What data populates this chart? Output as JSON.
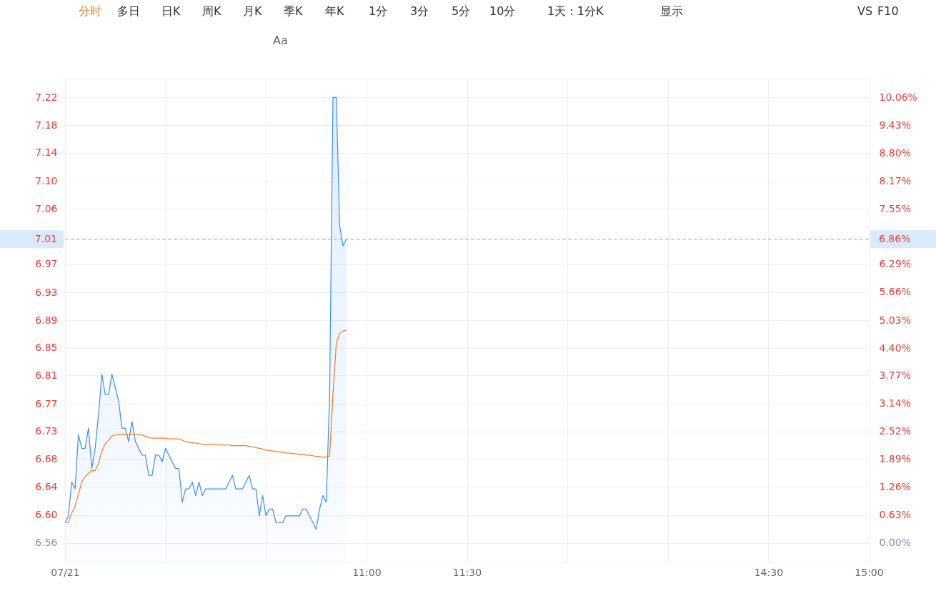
{
  "chart_data": {
    "type": "line",
    "annotations": [
      "分时",
      "多日",
      "日K",
      "周K",
      "月K",
      "季K",
      "年K",
      "1分",
      "3分",
      "5分",
      "10分",
      "1天 : 1分K",
      "显示",
      "VS",
      "F10",
      "Aa",
      "6.86%"
    ],
    "categories": [
      "07/21",
      null,
      null,
      null,
      null,
      null,
      null,
      null,
      null,
      null,
      null,
      null,
      null,
      null,
      null,
      null,
      null,
      null,
      null,
      null,
      null,
      null,
      null,
      null,
      null,
      null,
      null,
      null,
      null,
      null,
      null,
      null,
      null,
      null,
      null,
      null,
      null,
      null,
      null,
      null,
      null,
      null,
      null,
      null,
      null,
      null,
      null,
      null,
      null,
      null,
      null,
      null,
      null,
      null,
      null,
      null,
      null,
      null,
      null,
      null,
      null,
      null,
      null,
      null,
      null,
      null,
      null,
      null,
      null,
      null,
      null,
      null,
      null,
      null,
      null,
      null,
      null,
      null,
      null,
      null,
      null,
      null,
      null,
      null,
      null,
      null,
      null,
      null,
      null,
      null,
      "11:00",
      null,
      null,
      null,
      null,
      null,
      null,
      null,
      null,
      null,
      null,
      null,
      null,
      null,
      null,
      null,
      null,
      null,
      null,
      null,
      null,
      null,
      null,
      null,
      null,
      null,
      null,
      null,
      null,
      null,
      "11:30",
      null,
      null,
      null,
      null,
      null,
      null,
      null,
      null,
      null,
      null,
      null,
      null,
      null,
      null,
      null,
      null,
      null,
      null,
      null,
      null,
      null,
      null,
      null,
      null,
      null,
      null,
      null,
      null,
      null,
      null,
      null,
      null,
      null,
      null,
      null,
      null,
      null,
      null,
      null,
      null,
      null,
      null,
      null,
      null,
      null,
      null,
      null,
      null,
      null,
      null,
      null,
      null,
      null,
      null,
      null,
      null,
      null,
      null,
      null,
      null,
      null,
      null,
      null,
      null,
      null,
      null,
      null,
      null,
      null,
      null,
      null,
      null,
      null,
      null,
      null,
      null,
      null,
      null,
      null,
      null,
      null,
      null,
      null,
      null,
      null,
      null,
      null,
      null,
      null,
      "14:30",
      null,
      null,
      null,
      null,
      null,
      null,
      null,
      null,
      null,
      null,
      null,
      null,
      null,
      null,
      null,
      null,
      null,
      null,
      null,
      null,
      null,
      null,
      null,
      null,
      null,
      null,
      null,
      null,
      null,
      "15:00"
    ],
    "series": [
      {
        "type": "area",
        "color": "#3a8ef6",
        "values": [
          6.59,
          6.6,
          6.65,
          6.64,
          6.72,
          6.7,
          6.7,
          6.73,
          6.67,
          6.7,
          6.75,
          6.81,
          6.78,
          6.78,
          6.81,
          6.79,
          6.77,
          6.73,
          6.73,
          6.71,
          6.74,
          6.71,
          6.7,
          6.69,
          6.69,
          6.66,
          6.66,
          6.69,
          6.69,
          6.68,
          6.7,
          6.69,
          6.68,
          6.67,
          6.67,
          6.62,
          6.64,
          6.64,
          6.65,
          6.63,
          6.65,
          6.63,
          6.64,
          6.64,
          6.64,
          6.64,
          6.64,
          6.64,
          6.64,
          6.65,
          6.66,
          6.64,
          6.64,
          6.64,
          6.65,
          6.66,
          6.64,
          6.64,
          6.6,
          6.63,
          6.6,
          6.61,
          6.61,
          6.59,
          6.59,
          6.59,
          6.6,
          6.6,
          6.6,
          6.6,
          6.6,
          6.61,
          6.61,
          6.6,
          6.59,
          6.58,
          6.61,
          6.63,
          6.62,
          6.78,
          7.22,
          7.22,
          7.03,
          7.0,
          7.01,
          null,
          null,
          null,
          null,
          null,
          null,
          null,
          null,
          null,
          null,
          null,
          null,
          null,
          null,
          null,
          null,
          null,
          null,
          null,
          null,
          null,
          null,
          null,
          null,
          null,
          null,
          null,
          null,
          null,
          null,
          null,
          null,
          null,
          null,
          null,
          null,
          null,
          null,
          null,
          null,
          null,
          null,
          null,
          null,
          null,
          null,
          null,
          null,
          null,
          null,
          null,
          null,
          null,
          null,
          null,
          null,
          null,
          null,
          null,
          null,
          null,
          null,
          null,
          null,
          null,
          null,
          null,
          null,
          null,
          null,
          null,
          null,
          null,
          null,
          null,
          null,
          null,
          null,
          null,
          null,
          null,
          null,
          null,
          null,
          null,
          null,
          null,
          null,
          null,
          null,
          null,
          null,
          null,
          null,
          null,
          null,
          null,
          null,
          null,
          null,
          null,
          null,
          null,
          null,
          null,
          null,
          null,
          null,
          null,
          null,
          null,
          null,
          null,
          null,
          null,
          null,
          null,
          null,
          null,
          null,
          null,
          null,
          null,
          null,
          null,
          null,
          null,
          null,
          null,
          null,
          null,
          null,
          null,
          null,
          null,
          null,
          null,
          null,
          null,
          null,
          null,
          null,
          null,
          null,
          null,
          null,
          null,
          null,
          null,
          null,
          null,
          null,
          null,
          null,
          null,
          null
        ]
      },
      {
        "color": "#f47b20",
        "values": [
          6.59,
          6.59,
          6.604,
          6.614,
          6.632,
          6.65,
          6.658,
          6.663,
          6.667,
          6.667,
          6.678,
          6.696,
          6.707,
          6.712,
          6.718,
          6.72,
          6.721,
          6.721,
          6.721,
          6.721,
          6.721,
          6.721,
          6.721,
          6.72,
          6.718,
          6.716,
          6.715,
          6.715,
          6.715,
          6.715,
          6.715,
          6.714,
          6.714,
          6.714,
          6.714,
          6.712,
          6.71,
          6.709,
          6.708,
          6.708,
          6.707,
          6.706,
          6.706,
          6.706,
          6.706,
          6.706,
          6.705,
          6.705,
          6.705,
          6.705,
          6.704,
          6.704,
          6.704,
          6.704,
          6.704,
          6.703,
          6.702,
          6.701,
          6.7,
          6.699,
          6.697,
          6.697,
          6.696,
          6.695,
          6.695,
          6.694,
          6.693,
          6.693,
          6.692,
          6.692,
          6.691,
          6.691,
          6.69,
          6.69,
          6.689,
          6.688,
          6.688,
          6.687,
          6.687,
          6.688,
          6.78,
          6.856,
          6.87,
          6.874,
          6.875,
          null,
          null,
          null,
          null,
          null,
          null,
          null,
          null,
          null,
          null,
          null,
          null,
          null,
          null,
          null,
          null,
          null,
          null,
          null,
          null,
          null,
          null,
          null,
          null,
          null,
          null,
          null,
          null,
          null,
          null,
          null,
          null,
          null,
          null,
          null,
          null,
          null,
          null,
          null,
          null,
          null,
          null,
          null,
          null,
          null,
          null,
          null,
          null,
          null,
          null,
          null,
          null,
          null,
          null,
          null,
          null,
          null,
          null,
          null,
          null,
          null,
          null,
          null,
          null,
          null,
          null,
          null,
          null,
          null,
          null,
          null,
          null,
          null,
          null,
          null,
          null,
          null,
          null,
          null,
          null,
          null,
          null,
          null,
          null,
          null,
          null,
          null,
          null,
          null,
          null,
          null,
          null,
          null,
          null,
          null,
          null,
          null,
          null,
          null,
          null,
          null,
          null,
          null,
          null,
          null,
          null,
          null,
          null,
          null,
          null,
          null,
          null,
          null,
          null,
          null,
          null,
          null,
          null,
          null,
          null,
          null,
          null,
          null,
          null,
          null,
          null,
          null,
          null,
          null,
          null,
          null,
          null,
          null,
          null,
          null,
          null,
          null,
          null,
          null,
          null,
          null,
          null,
          null,
          null,
          null,
          null,
          null,
          null,
          null,
          null,
          null,
          null,
          null,
          null,
          null,
          null
        ]
      }
    ],
    "ylim": [
      6.532,
      7.248
    ],
    "yticks": [
      6.56,
      {
        "value": 6.601,
        "label": "6.60"
      },
      {
        "value": 6.643,
        "label": "6.64"
      },
      {
        "value": 6.684,
        "label": "6.68"
      },
      {
        "value": 6.725,
        "label": "6.73"
      },
      {
        "value": 6.766,
        "label": "6.77"
      },
      {
        "value": 6.808,
        "label": "6.81"
      },
      {
        "value": 6.849,
        "label": "6.85"
      },
      6.89,
      {
        "value": 6.931,
        "label": "6.93"
      },
      {
        "value": 6.973,
        "label": "6.97"
      },
      {
        "value": 7.014,
        "label": null
      },
      {
        "value": 7.055,
        "label": "7.06"
      },
      {
        "value": 7.096,
        "label": "7.10"
      },
      {
        "value": 7.138,
        "label": "7.14"
      },
      {
        "value": 7.179,
        "label": "7.18"
      },
      7.22
    ],
    "y2lim": [
      -0.42,
      10.48
    ],
    "y2ticks": [
      {
        "value": 0,
        "label": "0.00%"
      },
      {
        "value": 0.629,
        "label": "0.63%"
      },
      {
        "value": 1.258,
        "label": "1.26%"
      },
      {
        "value": 1.886,
        "label": "1.89%"
      },
      {
        "value": 2.515,
        "label": "2.52%"
      },
      {
        "value": 3.144,
        "label": "3.14%"
      },
      {
        "value": 3.773,
        "label": "3.77%"
      },
      {
        "value": 4.401,
        "label": "4.40%"
      },
      {
        "value": 5.03,
        "label": "5.03%"
      },
      {
        "value": 5.659,
        "label": "5.66%"
      },
      {
        "value": 6.288,
        "label": "6.29%"
      },
      {
        "value": 6.916,
        "label": null
      },
      {
        "value": 7.545,
        "label": "7.55%"
      },
      {
        "value": 8.174,
        "label": "8.17%"
      },
      {
        "value": 8.803,
        "label": "8.80%"
      },
      {
        "value": 9.431,
        "label": "9.43%"
      },
      {
        "value": 10.06,
        "label": "10.06%"
      }
    ],
    "ref_lines": [
      {
        "axis": "y",
        "value": 7.01,
        "label": "7.01",
        "color": "#a0a0a0",
        "line_style": "dashed"
      }
    ],
    "grid": true
  }
}
